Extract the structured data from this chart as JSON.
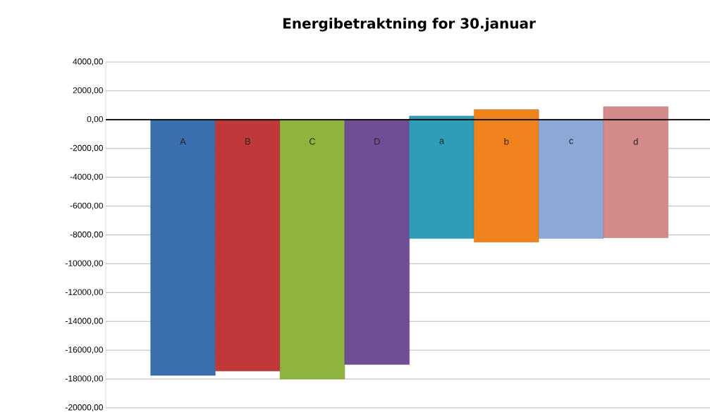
{
  "chart_data": {
    "type": "bar",
    "title": "Energibetraktning for 30.januar",
    "categories": [
      "A",
      "B",
      "C",
      "D",
      "a",
      "b",
      "c",
      "d"
    ],
    "values": [
      -17750,
      -17450,
      -18000,
      -17000,
      8500,
      9200,
      8250,
      9100
    ],
    "base": [
      0,
      0,
      0,
      0,
      -8250,
      -8500,
      -8250,
      -8200
    ],
    "colors": [
      "#3a6fb0",
      "#c0393a",
      "#8fb43e",
      "#704e96",
      "#2f9cb8",
      "#f0821e",
      "#8ea8d6",
      "#d48a88"
    ],
    "ylim": [
      -20000,
      4000
    ],
    "yticks": [
      {
        "value": 4000,
        "label": "4000,00"
      },
      {
        "value": 2000,
        "label": "2000,00"
      },
      {
        "value": 0,
        "label": "0,00"
      },
      {
        "value": -2000,
        "label": "-2000,00"
      },
      {
        "value": -4000,
        "label": "-4000,00"
      },
      {
        "value": -6000,
        "label": "-6000,00"
      },
      {
        "value": -8000,
        "label": "-8000,00"
      },
      {
        "value": -10000,
        "label": "-10000,00"
      },
      {
        "value": -12000,
        "label": "-12000,00"
      },
      {
        "value": -14000,
        "label": "-14000,00"
      },
      {
        "value": -16000,
        "label": "-16000,00"
      },
      {
        "value": -18000,
        "label": "-18000,00"
      },
      {
        "value": -20000,
        "label": "-20000,00"
      }
    ],
    "grid": "y",
    "tick_labels": "y"
  }
}
